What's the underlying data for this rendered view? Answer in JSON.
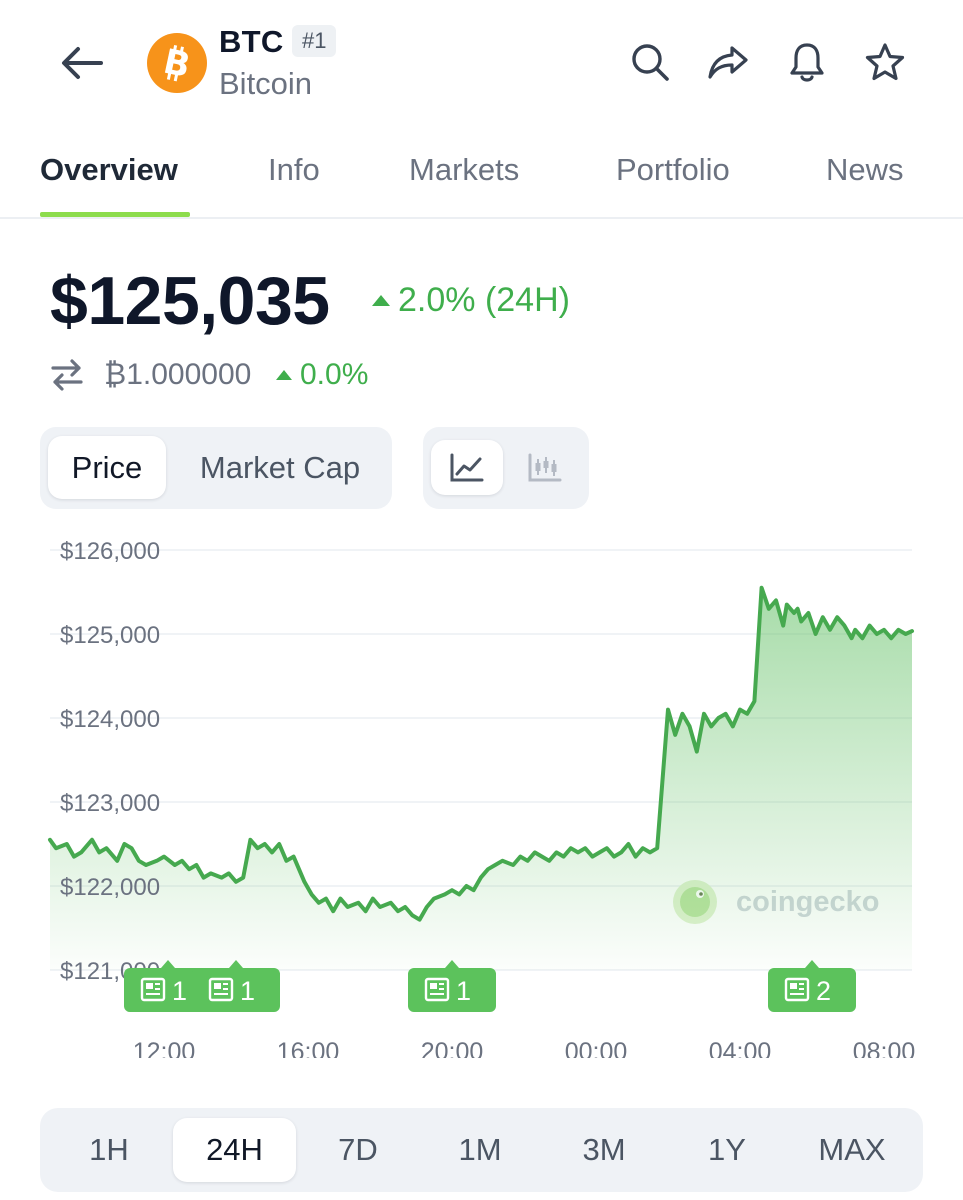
{
  "header": {
    "symbol": "BTC",
    "rank": "#1",
    "name": "Bitcoin",
    "icons": [
      "back-arrow-icon",
      "search-icon",
      "share-icon",
      "bell-icon",
      "star-icon"
    ]
  },
  "tabs": [
    {
      "label": "Overview",
      "active": true
    },
    {
      "label": "Info"
    },
    {
      "label": "Markets"
    },
    {
      "label": "Portfolio"
    },
    {
      "label": "News"
    }
  ],
  "price": {
    "value": "$125,035",
    "change": "2.0% (24H)",
    "btc_value": "₿1.000000",
    "btc_change": "0.0%"
  },
  "metric_toggle": {
    "options": [
      "Price",
      "Market Cap"
    ],
    "selected": "Price"
  },
  "chart_type_toggle": {
    "options": [
      "line-chart-icon",
      "candlestick-chart-icon"
    ],
    "selected": "line-chart-icon"
  },
  "colors": {
    "positive": "#3fae4c",
    "accent_underline": "#8ddc4d",
    "line": "#46a94f"
  },
  "chart_data": {
    "type": "area",
    "y_ticks": [
      "$126,000",
      "$125,000",
      "$124,000",
      "$123,000",
      "$122,000",
      "$121,000"
    ],
    "ylim": [
      121000,
      126000
    ],
    "x_ticks": [
      "12:00",
      "16:00",
      "20:00",
      "00:00",
      "04:00",
      "08:00"
    ],
    "x_hours": [
      0,
      4,
      8,
      12,
      16,
      20
    ],
    "watermark": "coingecko",
    "news_markers": [
      {
        "count": "1",
        "hour": 0
      },
      {
        "count": "1",
        "hour": 2
      },
      {
        "count": "1",
        "hour": 8
      },
      {
        "count": "2",
        "hour": 18
      }
    ],
    "series": [
      {
        "x": [
          -3.2,
          -3.0,
          -2.7,
          -2.5,
          -2.3,
          -2.0,
          -1.8,
          -1.6,
          -1.3,
          -1.1,
          -0.9,
          -0.7,
          -0.5,
          -0.2,
          0.0,
          0.3,
          0.5,
          0.7,
          0.9,
          1.1,
          1.3,
          1.6,
          1.8,
          2.0,
          2.2,
          2.4,
          2.6,
          2.8,
          3.0,
          3.2,
          3.4,
          3.6,
          3.9,
          4.1,
          4.3,
          4.5,
          4.7,
          4.9,
          5.1,
          5.4,
          5.6,
          5.8,
          6.0,
          6.3,
          6.5,
          6.7,
          6.9,
          7.1,
          7.3,
          7.5,
          7.8,
          8.0,
          8.2,
          8.4,
          8.6,
          8.8,
          9.0,
          9.2,
          9.4,
          9.7,
          9.9,
          10.1,
          10.3,
          10.5,
          10.7,
          10.9,
          11.1,
          11.3,
          11.5,
          11.7,
          11.9,
          12.1,
          12.3,
          12.5,
          12.7,
          12.9,
          13.1,
          13.3,
          13.5,
          13.7,
          14.0,
          14.2,
          14.4,
          14.6,
          14.8,
          15.0,
          15.2,
          15.4,
          15.6,
          15.8,
          16.0,
          16.2,
          16.4,
          16.6,
          16.8,
          17.0,
          17.2,
          17.3,
          17.5,
          17.6,
          17.7,
          17.9,
          18.1,
          18.3,
          18.5,
          18.7,
          18.9,
          19.1,
          19.2,
          19.4,
          19.6,
          19.8,
          20.0,
          20.2,
          20.4,
          20.6,
          20.8
        ],
        "y": [
          122550,
          122450,
          122500,
          122350,
          122400,
          122550,
          122400,
          122450,
          122300,
          122500,
          122450,
          122300,
          122250,
          122300,
          122350,
          122250,
          122300,
          122200,
          122250,
          122100,
          122150,
          122100,
          122150,
          122050,
          122100,
          122550,
          122450,
          122500,
          122400,
          122500,
          122300,
          122350,
          122050,
          121900,
          121800,
          121850,
          121700,
          121850,
          121750,
          121800,
          121700,
          121850,
          121750,
          121800,
          121700,
          121750,
          121650,
          121600,
          121750,
          121850,
          121900,
          121950,
          121900,
          122000,
          121950,
          122100,
          122200,
          122250,
          122300,
          122250,
          122350,
          122300,
          122400,
          122350,
          122300,
          122400,
          122350,
          122450,
          122400,
          122450,
          122350,
          122400,
          122450,
          122350,
          122400,
          122500,
          122350,
          122450,
          122400,
          122450,
          124100,
          123800,
          124050,
          123900,
          123600,
          124050,
          123900,
          124000,
          124050,
          123900,
          124100,
          124050,
          124200,
          125550,
          125300,
          125400,
          125100,
          125350,
          125250,
          125300,
          125150,
          125250,
          125000,
          125200,
          125050,
          125200,
          125100,
          124950,
          125050,
          124950,
          125100,
          125000,
          125050,
          124950,
          125050,
          125000,
          125035
        ]
      }
    ]
  },
  "range_selector": {
    "options": [
      "1H",
      "24H",
      "7D",
      "1M",
      "3M",
      "1Y",
      "MAX"
    ],
    "selected": "24H"
  }
}
